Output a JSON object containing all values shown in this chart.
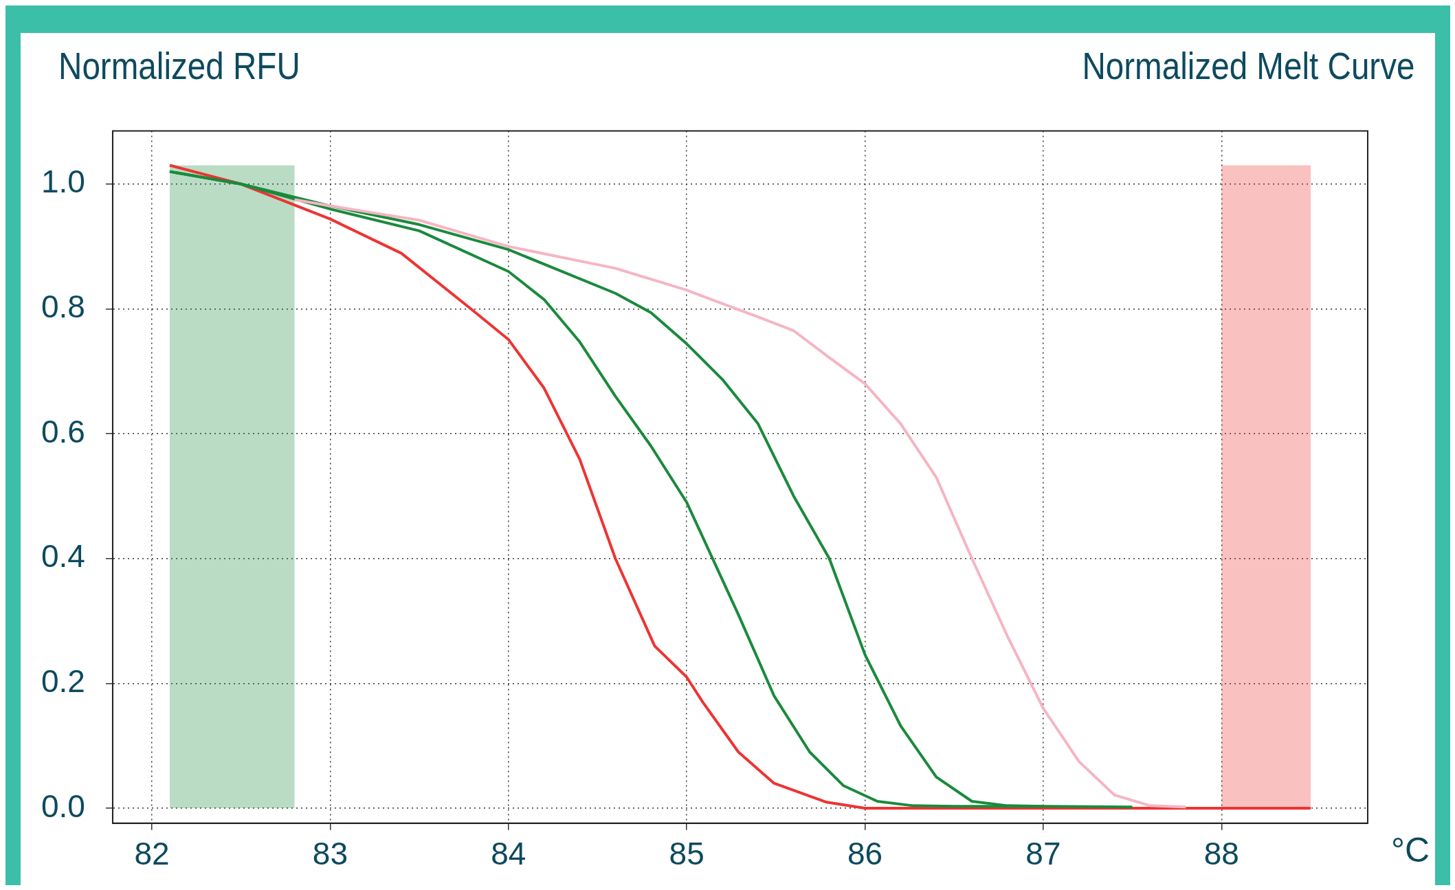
{
  "chart_data": {
    "type": "line",
    "title": "Normalized Melt Curve",
    "ylabel": "Normalized RFU",
    "xlabel": "°C",
    "xlim": [
      81.78,
      88.82
    ],
    "ylim": [
      -0.024,
      1.085
    ],
    "xticks": [
      82,
      83,
      84,
      85,
      86,
      87,
      88
    ],
    "yticks": [
      {
        "value": 0,
        "label": "0.0"
      },
      {
        "value": 0.2,
        "label": "0.2"
      },
      {
        "value": 0.4,
        "label": "0.4"
      },
      {
        "value": 0.6,
        "label": "0.6"
      },
      {
        "value": 0.8,
        "label": "0.8"
      },
      {
        "value": 1,
        "label": "1.0"
      }
    ],
    "grid": true,
    "legend": false,
    "marker": "none",
    "line_style": "solid",
    "bands": [
      {
        "axis": "x",
        "from": 82.1,
        "to": 82.8,
        "color": "#1a8a3c"
      },
      {
        "axis": "x",
        "from": 88.0,
        "to": 88.5,
        "color": "#ee3333"
      }
    ],
    "series": [
      {
        "color": "#f5b5c3",
        "x": [
          82.8,
          83,
          83.5,
          84,
          84.6,
          85,
          85.4,
          85.6,
          85.8,
          86,
          86.2,
          86.4,
          86.6,
          86.8,
          87,
          87.2,
          87.4,
          87.6,
          87.8
        ],
        "values": [
          0.975,
          0.965,
          0.942,
          0.9,
          0.865,
          0.83,
          0.787,
          0.765,
          0.722,
          0.68,
          0.616,
          0.53,
          0.4,
          0.275,
          0.16,
          0.075,
          0.021,
          0.004,
          0.002
        ]
      },
      {
        "color": "#1a8a3c",
        "x": [
          82.1,
          82.5,
          83,
          83.5,
          84,
          84.2,
          84.4,
          84.6,
          84.8,
          85,
          85.29,
          85.49,
          85.69,
          85.88,
          86.07,
          86.27,
          86.5,
          87
        ],
        "values": [
          1.02,
          1.0,
          0.96,
          0.925,
          0.86,
          0.815,
          0.747,
          0.66,
          0.58,
          0.49,
          0.31,
          0.18,
          0.09,
          0.036,
          0.011,
          0.004,
          0.003,
          0.003
        ]
      },
      {
        "color": "#1a8a3c",
        "x": [
          82.1,
          82.5,
          83,
          83.5,
          84,
          84.6,
          84.8,
          85,
          85.2,
          85.4,
          85.6,
          85.8,
          86,
          86.2,
          86.4,
          86.6,
          86.8,
          87,
          87.5
        ],
        "values": [
          1.02,
          1.0,
          0.965,
          0.935,
          0.895,
          0.825,
          0.794,
          0.744,
          0.687,
          0.616,
          0.5,
          0.4,
          0.246,
          0.132,
          0.05,
          0.011,
          0.004,
          0.003,
          0.002
        ]
      },
      {
        "color": "#ee3333",
        "x": [
          82.1,
          82.5,
          83,
          83.4,
          83.79,
          84,
          84.2,
          84.4,
          84.6,
          84.82,
          85,
          85.09,
          85.29,
          85.49,
          85.78,
          86,
          87,
          88,
          88.5
        ],
        "values": [
          1.03,
          1.0,
          0.944,
          0.889,
          0.8,
          0.751,
          0.673,
          0.559,
          0.4,
          0.26,
          0.21,
          0.17,
          0.09,
          0.04,
          0.01,
          0.0,
          0.0,
          0.0,
          0.0
        ]
      }
    ]
  }
}
